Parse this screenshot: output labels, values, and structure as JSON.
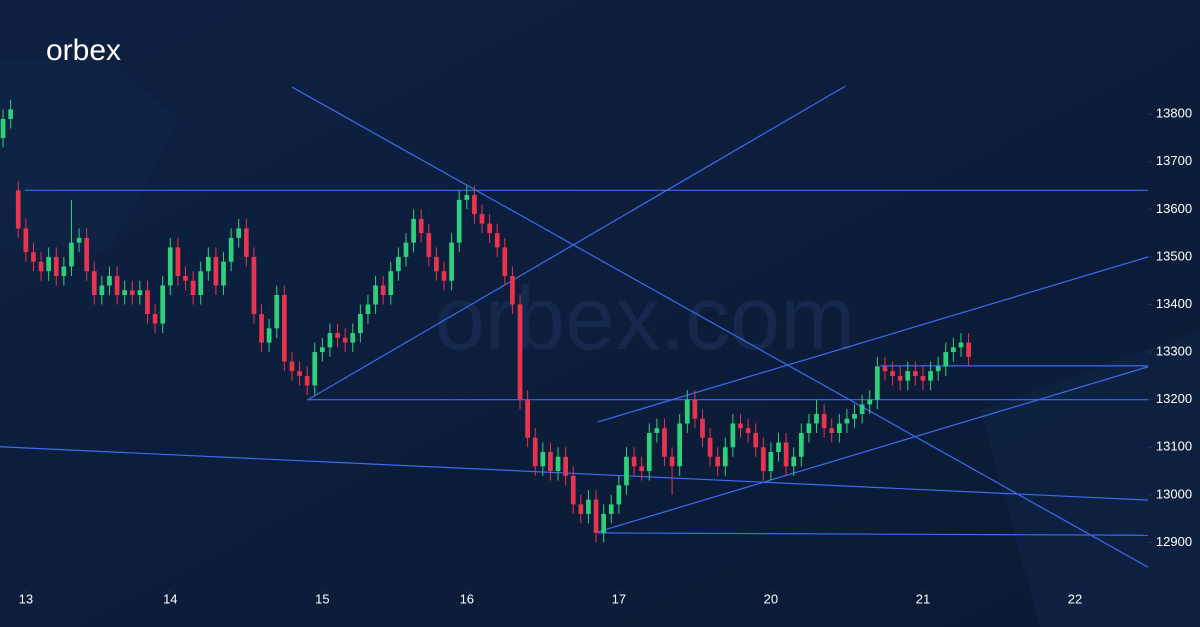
{
  "brand": {
    "logo": "orbex",
    "watermark": "orbex.com"
  },
  "chart_data": {
    "type": "candlestick",
    "up_color": "#2fd07a",
    "down_color": "#e8344e",
    "line_color": "#3a6df0",
    "xlim": [
      -0.4,
      150.6
    ],
    "xticks": [
      {
        "value": 3,
        "label": "13"
      },
      {
        "value": 22,
        "label": "14"
      },
      {
        "value": 42,
        "label": "15"
      },
      {
        "value": 61,
        "label": "16"
      },
      {
        "value": 81,
        "label": "17"
      },
      {
        "value": 101,
        "label": "20"
      },
      {
        "value": 121,
        "label": "21"
      },
      {
        "value": 141,
        "label": "22"
      }
    ],
    "ylim": [
      12800,
      14040
    ],
    "yticks": [
      12900,
      13000,
      13100,
      13200,
      13300,
      13400,
      13500,
      13600,
      13700,
      13800
    ],
    "open": [
      13750,
      13790,
      13640,
      13560,
      13510,
      13490,
      13470,
      13500,
      13460,
      13480,
      13530,
      13540,
      13470,
      13420,
      13440,
      13460,
      13420,
      13430,
      13420,
      13430,
      13380,
      13360,
      13440,
      13520,
      13460,
      13450,
      13420,
      13470,
      13500,
      13440,
      13490,
      13540,
      13560,
      13500,
      13380,
      13320,
      13350,
      13420,
      13280,
      13260,
      13250,
      13230,
      13300,
      13310,
      13340,
      13330,
      13320,
      13340,
      13380,
      13400,
      13440,
      13420,
      13470,
      13500,
      13530,
      13580,
      13550,
      13500,
      13470,
      13450,
      13530,
      13620,
      13630,
      13590,
      13570,
      13550,
      13520,
      13460,
      13400,
      13200,
      13120,
      13060,
      13090,
      13050,
      13080,
      13040,
      12980,
      12960,
      12990,
      12920,
      12960,
      12980,
      13020,
      13080,
      13060,
      13050,
      13130,
      13140,
      13080,
      13060,
      13150,
      13200,
      13160,
      13120,
      13080,
      13060,
      13100,
      13150,
      13140,
      13130,
      13100,
      13050,
      13090,
      13110,
      13060,
      13080,
      13130,
      13150,
      13170,
      13140,
      13130,
      13150,
      13160,
      13170,
      13190,
      13200,
      13270,
      13260,
      13250,
      13240,
      13260,
      13250,
      13240,
      13260,
      13270,
      13300,
      13310,
      13320
    ],
    "high": [
      13810,
      13830,
      13660,
      13580,
      13530,
      13510,
      13520,
      13520,
      13500,
      13620,
      13560,
      13560,
      13490,
      13460,
      13480,
      13480,
      13450,
      13450,
      13450,
      13450,
      13400,
      13460,
      13540,
      13540,
      13480,
      13470,
      13490,
      13520,
      13520,
      13510,
      13560,
      13580,
      13580,
      13520,
      13400,
      13370,
      13440,
      13440,
      13300,
      13280,
      13270,
      13320,
      13330,
      13360,
      13360,
      13350,
      13360,
      13400,
      13420,
      13460,
      13460,
      13490,
      13520,
      13550,
      13600,
      13600,
      13570,
      13520,
      13490,
      13550,
      13640,
      13650,
      13650,
      13610,
      13590,
      13570,
      13540,
      13480,
      13420,
      13220,
      13140,
      13110,
      13110,
      13100,
      13100,
      13060,
      13000,
      13010,
      13010,
      12980,
      13000,
      13040,
      13100,
      13100,
      13080,
      13150,
      13160,
      13160,
      13100,
      13170,
      13220,
      13220,
      13180,
      13140,
      13100,
      13120,
      13170,
      13170,
      13160,
      13150,
      13120,
      13110,
      13130,
      13130,
      13100,
      13150,
      13170,
      13200,
      13190,
      13160,
      13170,
      13180,
      13190,
      13210,
      13220,
      13290,
      13290,
      13280,
      13270,
      13280,
      13280,
      13270,
      13280,
      13290,
      13320,
      13330,
      13340,
      13340
    ],
    "low": [
      13730,
      13770,
      13540,
      13490,
      13470,
      13450,
      13450,
      13440,
      13440,
      13460,
      13510,
      13450,
      13400,
      13400,
      13420,
      13400,
      13400,
      13400,
      13400,
      13360,
      13340,
      13340,
      13420,
      13440,
      13430,
      13400,
      13400,
      13450,
      13420,
      13420,
      13470,
      13520,
      13480,
      13360,
      13300,
      13300,
      13330,
      13260,
      13240,
      13230,
      13210,
      13210,
      13280,
      13290,
      13310,
      13300,
      13300,
      13320,
      13360,
      13380,
      13400,
      13400,
      13450,
      13480,
      13510,
      13530,
      13480,
      13450,
      13430,
      13430,
      13510,
      13600,
      13570,
      13550,
      13530,
      13500,
      13440,
      13380,
      13180,
      13100,
      13040,
      13040,
      13030,
      13030,
      13020,
      12960,
      12940,
      12940,
      12900,
      12900,
      12940,
      12960,
      13000,
      13040,
      13030,
      13030,
      13110,
      13060,
      13000,
      13040,
      13130,
      13140,
      13100,
      13060,
      13040,
      13040,
      13080,
      13120,
      13110,
      13080,
      13030,
      13030,
      13070,
      13040,
      13040,
      13060,
      13110,
      13130,
      13120,
      13110,
      13110,
      13130,
      13140,
      13150,
      13170,
      13180,
      13240,
      13230,
      13220,
      13220,
      13230,
      13220,
      13220,
      13240,
      13250,
      13280,
      13290,
      13270
    ],
    "close": [
      13790,
      13810,
      13560,
      13510,
      13490,
      13470,
      13500,
      13460,
      13480,
      13530,
      13540,
      13470,
      13420,
      13440,
      13460,
      13420,
      13430,
      13420,
      13430,
      13380,
      13360,
      13440,
      13520,
      13460,
      13450,
      13420,
      13470,
      13500,
      13440,
      13490,
      13540,
      13560,
      13500,
      13380,
      13320,
      13350,
      13420,
      13280,
      13260,
      13250,
      13230,
      13300,
      13310,
      13340,
      13330,
      13320,
      13340,
      13380,
      13400,
      13440,
      13420,
      13470,
      13500,
      13530,
      13580,
      13550,
      13500,
      13470,
      13450,
      13530,
      13620,
      13630,
      13590,
      13570,
      13550,
      13520,
      13460,
      13400,
      13200,
      13120,
      13060,
      13090,
      13050,
      13080,
      13040,
      12980,
      12960,
      12990,
      12920,
      12960,
      12980,
      13020,
      13080,
      13060,
      13050,
      13130,
      13140,
      13080,
      13060,
      13150,
      13200,
      13160,
      13120,
      13080,
      13060,
      13100,
      13150,
      13140,
      13130,
      13100,
      13050,
      13090,
      13110,
      13060,
      13080,
      13130,
      13150,
      13170,
      13140,
      13130,
      13150,
      13160,
      13170,
      13190,
      13200,
      13270,
      13260,
      13250,
      13240,
      13260,
      13250,
      13240,
      13260,
      13270,
      13300,
      13310,
      13320,
      13290
    ],
    "lines": [
      {
        "x": [
          2.9,
          150.6
        ],
        "y": [
          13640,
          13640
        ]
      },
      {
        "x": [
          38.0,
          150.6
        ],
        "y": [
          13857,
          12848
        ]
      },
      {
        "x": [
          40.0,
          110.8
        ],
        "y": [
          13199,
          13859
        ]
      },
      {
        "x": [
          40.0,
          150.6
        ],
        "y": [
          13200,
          13200
        ]
      },
      {
        "x": [
          -0.4,
          150.6
        ],
        "y": [
          13101,
          12989
        ]
      },
      {
        "x": [
          78.2,
          150.6
        ],
        "y": [
          13153,
          13500
        ]
      },
      {
        "x": [
          78.2,
          150.6
        ],
        "y": [
          12922,
          13269
        ]
      },
      {
        "x": [
          78.2,
          150.6
        ],
        "y": [
          12920,
          12915
        ]
      },
      {
        "x": [
          115.4,
          150.6
        ],
        "y": [
          13271,
          13271
        ]
      }
    ]
  }
}
